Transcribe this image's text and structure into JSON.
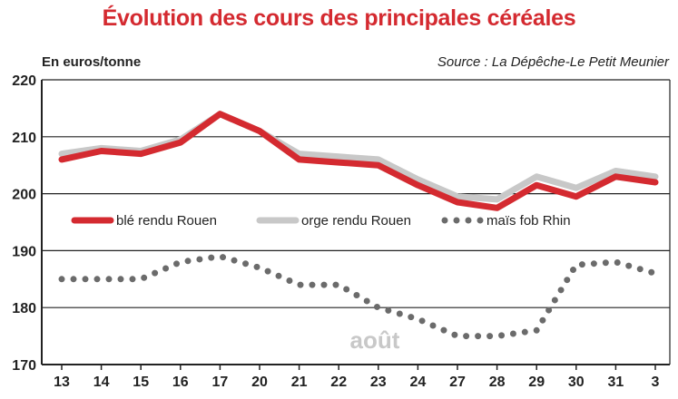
{
  "chart_data": {
    "type": "line",
    "title": "Évolution des cours des principales céréales",
    "unit_label": "En euros/tonne",
    "source": "Source : La Dépêche-Le Petit Meunier",
    "categories": [
      "13",
      "14",
      "15",
      "16",
      "17",
      "20",
      "21",
      "22",
      "23",
      "24",
      "27",
      "28",
      "29",
      "30",
      "31",
      "3"
    ],
    "ylim": [
      170,
      220
    ],
    "yticks": [
      170,
      180,
      190,
      200,
      210,
      220
    ],
    "grid": true,
    "legend_position": "inside-middle",
    "annotation": "août",
    "series": [
      {
        "name": "orge rendu Rouen",
        "color": "#c8c8c8",
        "style": "solid",
        "values": [
          207,
          208,
          207.5,
          209.5,
          214,
          211,
          207,
          206.5,
          206,
          202.5,
          199.5,
          199,
          203,
          201,
          204,
          203
        ]
      },
      {
        "name": "blé rendu Rouen",
        "color": "#d42a30",
        "style": "solid",
        "values": [
          206,
          207.5,
          207,
          209,
          214,
          211,
          206,
          205.5,
          205,
          201.5,
          198.5,
          197.5,
          201.5,
          199.5,
          203,
          202
        ]
      },
      {
        "name": "maïs fob Rhin",
        "color": "#6b6b6b",
        "style": "dotted",
        "values": [
          185,
          185,
          185,
          188,
          189,
          187,
          184,
          184,
          180,
          178,
          175,
          175,
          176,
          187.5,
          188,
          186
        ]
      }
    ]
  }
}
